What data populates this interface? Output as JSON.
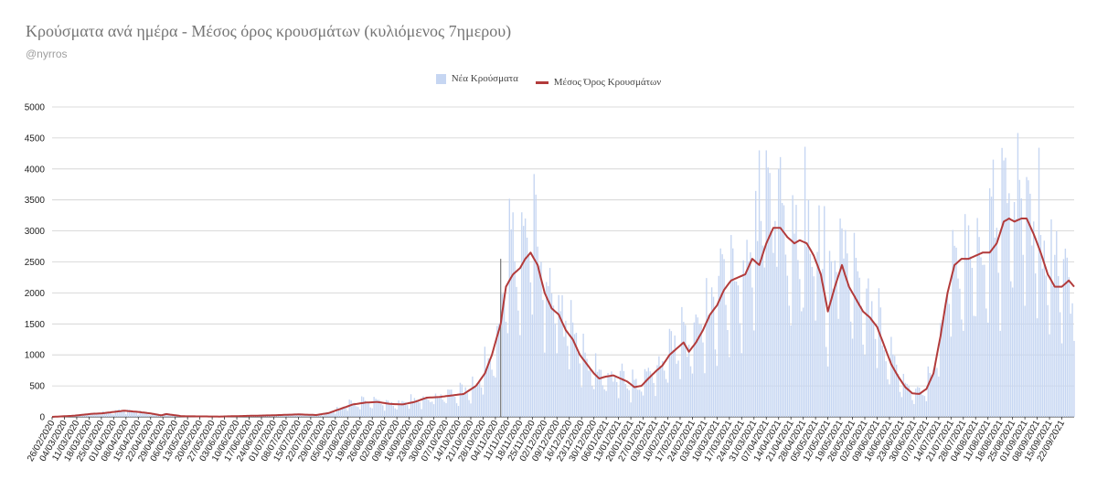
{
  "title": "Κρούσματα ανά ημέρα - Μέσος όρος κρουσμάτων (κυλιόμενος 7ημερου)",
  "subtitle": "@nyrros",
  "legend": {
    "bars_label": "Νέα Κρούσματα",
    "line_label": "Μέσος Όρος Κρουσμάτων"
  },
  "colors": {
    "bars": "#c6d6f2",
    "line": "#b23b3b",
    "grid": "#cfcfcf",
    "axis": "#333333",
    "marker": "#777777"
  },
  "chart_data": {
    "type": "bar",
    "title": "Κρούσματα ανά ημέρα - Μέσος όρος κρουσμάτων (κυλιόμενος 7ημερου)",
    "xlabel": "",
    "ylabel": "",
    "ylim": [
      0,
      5000
    ],
    "yticks": [
      0,
      500,
      1000,
      1500,
      2000,
      2500,
      3000,
      3500,
      4000,
      4500,
      5000
    ],
    "grid": true,
    "legend_position": "top",
    "x_start": "2020-02-26",
    "x_end": "2021-09-29",
    "x_tick_every_days": 7,
    "x_tick_labels": [
      "26/02/2020",
      "04/03/2020",
      "11/03/2020",
      "18/03/2020",
      "25/03/2020",
      "01/04/2020",
      "08/04/2020",
      "15/04/2020",
      "22/04/2020",
      "29/04/2020",
      "06/05/2020",
      "13/05/2020",
      "20/05/2020",
      "27/05/2020",
      "03/06/2020",
      "10/06/2020",
      "17/06/2020",
      "24/06/2020",
      "01/07/2020",
      "08/07/2020",
      "15/07/2020",
      "22/07/2020",
      "29/07/2020",
      "05/08/2020",
      "12/08/2020",
      "19/08/2020",
      "26/08/2020",
      "02/09/2020",
      "09/09/2020",
      "16/09/2020",
      "23/09/2020",
      "30/09/2020",
      "07/10/2020",
      "14/10/2020",
      "21/10/2020",
      "28/10/2020",
      "04/11/2020",
      "11/11/2020",
      "18/11/2020",
      "25/11/2020",
      "02/12/2020",
      "09/12/2020",
      "16/12/2020",
      "23/12/2020",
      "30/12/2020",
      "06/01/2021",
      "13/01/2021",
      "20/01/2021",
      "27/01/2021",
      "03/02/2021",
      "10/02/2021",
      "17/02/2021",
      "24/02/2021",
      "03/03/2021",
      "10/03/2021",
      "17/03/2021",
      "24/03/2021",
      "31/03/2021",
      "07/04/2021",
      "14/04/2021",
      "21/04/2021",
      "28/04/2021",
      "05/05/2021",
      "12/05/2021",
      "19/05/2021",
      "26/05/2021",
      "02/06/2021",
      "09/06/2021",
      "16/06/2021",
      "23/06/2021",
      "30/06/2021",
      "07/07/2021",
      "14/07/2021",
      "21/07/2021",
      "28/07/2021",
      "04/08/2021",
      "11/08/2021",
      "18/08/2021",
      "25/08/2021",
      "01/09/2021",
      "08/09/2021",
      "15/09/2021",
      "22/09/2021"
    ],
    "marker_line_date": "2020-11-07",
    "series": [
      {
        "name": "Μέσος Όρος Κρουσμάτων",
        "type": "line",
        "points": [
          [
            "2020-02-26",
            0
          ],
          [
            "2020-03-10",
            20
          ],
          [
            "2020-03-20",
            50
          ],
          [
            "2020-03-25",
            55
          ],
          [
            "2020-04-01",
            80
          ],
          [
            "2020-04-07",
            100
          ],
          [
            "2020-04-15",
            80
          ],
          [
            "2020-04-22",
            55
          ],
          [
            "2020-04-28",
            25
          ],
          [
            "2020-05-01",
            45
          ],
          [
            "2020-05-05",
            30
          ],
          [
            "2020-05-10",
            10
          ],
          [
            "2020-05-31",
            5
          ],
          [
            "2020-06-15",
            15
          ],
          [
            "2020-06-30",
            25
          ],
          [
            "2020-07-15",
            40
          ],
          [
            "2020-07-25",
            30
          ],
          [
            "2020-08-01",
            60
          ],
          [
            "2020-08-08",
            130
          ],
          [
            "2020-08-15",
            200
          ],
          [
            "2020-08-22",
            230
          ],
          [
            "2020-08-29",
            240
          ],
          [
            "2020-09-05",
            210
          ],
          [
            "2020-09-12",
            200
          ],
          [
            "2020-09-19",
            240
          ],
          [
            "2020-09-26",
            310
          ],
          [
            "2020-10-03",
            320
          ],
          [
            "2020-10-10",
            345
          ],
          [
            "2020-10-17",
            370
          ],
          [
            "2020-10-24",
            500
          ],
          [
            "2020-10-29",
            700
          ],
          [
            "2020-11-02",
            1000
          ],
          [
            "2020-11-07",
            1500
          ],
          [
            "2020-11-10",
            2100
          ],
          [
            "2020-11-14",
            2300
          ],
          [
            "2020-11-18",
            2400
          ],
          [
            "2020-11-21",
            2550
          ],
          [
            "2020-11-24",
            2650
          ],
          [
            "2020-11-28",
            2450
          ],
          [
            "2020-12-02",
            2000
          ],
          [
            "2020-12-06",
            1750
          ],
          [
            "2020-12-10",
            1650
          ],
          [
            "2020-12-14",
            1400
          ],
          [
            "2020-12-18",
            1250
          ],
          [
            "2020-12-22",
            1000
          ],
          [
            "2020-12-26",
            850
          ],
          [
            "2020-12-30",
            700
          ],
          [
            "2021-01-02",
            620
          ],
          [
            "2021-01-06",
            650
          ],
          [
            "2021-01-10",
            670
          ],
          [
            "2021-01-14",
            620
          ],
          [
            "2021-01-18",
            570
          ],
          [
            "2021-01-22",
            480
          ],
          [
            "2021-01-26",
            500
          ],
          [
            "2021-01-30",
            620
          ],
          [
            "2021-02-03",
            730
          ],
          [
            "2021-02-07",
            830
          ],
          [
            "2021-02-11",
            1000
          ],
          [
            "2021-02-15",
            1100
          ],
          [
            "2021-02-19",
            1200
          ],
          [
            "2021-02-22",
            1050
          ],
          [
            "2021-02-26",
            1200
          ],
          [
            "2021-03-02",
            1400
          ],
          [
            "2021-03-06",
            1650
          ],
          [
            "2021-03-10",
            1800
          ],
          [
            "2021-03-14",
            2050
          ],
          [
            "2021-03-18",
            2200
          ],
          [
            "2021-03-22",
            2250
          ],
          [
            "2021-03-26",
            2300
          ],
          [
            "2021-03-30",
            2550
          ],
          [
            "2021-04-03",
            2450
          ],
          [
            "2021-04-07",
            2800
          ],
          [
            "2021-04-11",
            3050
          ],
          [
            "2021-04-15",
            3050
          ],
          [
            "2021-04-19",
            2900
          ],
          [
            "2021-04-23",
            2800
          ],
          [
            "2021-04-26",
            2850
          ],
          [
            "2021-04-30",
            2800
          ],
          [
            "2021-05-04",
            2600
          ],
          [
            "2021-05-08",
            2300
          ],
          [
            "2021-05-12",
            1700
          ],
          [
            "2021-05-16",
            2100
          ],
          [
            "2021-05-20",
            2450
          ],
          [
            "2021-05-24",
            2100
          ],
          [
            "2021-05-28",
            1900
          ],
          [
            "2021-06-01",
            1700
          ],
          [
            "2021-06-05",
            1600
          ],
          [
            "2021-06-09",
            1450
          ],
          [
            "2021-06-13",
            1150
          ],
          [
            "2021-06-17",
            850
          ],
          [
            "2021-06-21",
            650
          ],
          [
            "2021-06-25",
            480
          ],
          [
            "2021-06-29",
            380
          ],
          [
            "2021-07-03",
            370
          ],
          [
            "2021-07-07",
            450
          ],
          [
            "2021-07-11",
            700
          ],
          [
            "2021-07-15",
            1300
          ],
          [
            "2021-07-19",
            2000
          ],
          [
            "2021-07-23",
            2450
          ],
          [
            "2021-07-27",
            2550
          ],
          [
            "2021-07-31",
            2550
          ],
          [
            "2021-08-04",
            2600
          ],
          [
            "2021-08-08",
            2650
          ],
          [
            "2021-08-12",
            2650
          ],
          [
            "2021-08-16",
            2800
          ],
          [
            "2021-08-20",
            3150
          ],
          [
            "2021-08-23",
            3200
          ],
          [
            "2021-08-26",
            3150
          ],
          [
            "2021-08-30",
            3200
          ],
          [
            "2021-09-02",
            3200
          ],
          [
            "2021-09-06",
            2950
          ],
          [
            "2021-09-10",
            2650
          ],
          [
            "2021-09-14",
            2300
          ],
          [
            "2021-09-18",
            2100
          ],
          [
            "2021-09-22",
            2100
          ],
          [
            "2021-09-26",
            2200
          ],
          [
            "2021-09-29",
            2100
          ]
        ]
      },
      {
        "name": "Νέα Κρούσματα",
        "type": "bar",
        "note_values": "daily values follow the rolling average with day-to-day variation",
        "peaks": [
          [
            "2020-11-14",
            3300
          ],
          [
            "2020-11-21",
            3200
          ],
          [
            "2021-04-03",
            4300
          ],
          [
            "2021-04-07",
            4300
          ],
          [
            "2021-04-14",
            4000
          ],
          [
            "2021-05-10",
            3400
          ],
          [
            "2021-05-19",
            3200
          ],
          [
            "2021-08-14",
            4150
          ],
          [
            "2021-08-21",
            4180
          ],
          [
            "2021-08-28",
            4580
          ],
          [
            "2021-09-04",
            3600
          ],
          [
            "2021-09-19",
            3000
          ]
        ]
      }
    ]
  }
}
